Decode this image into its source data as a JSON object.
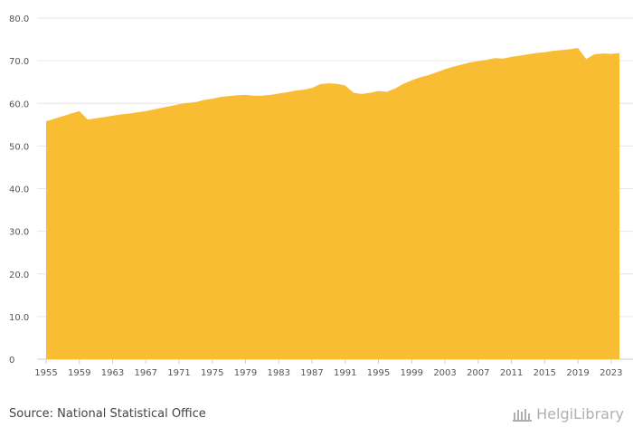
{
  "chart_data": {
    "type": "area",
    "title": "",
    "xlabel": "",
    "ylabel": "",
    "ylim": [
      0,
      80
    ],
    "yticks": [
      "0",
      "10.0",
      "20.0",
      "30.0",
      "40.0",
      "50.0",
      "60.0",
      "70.0",
      "80.0"
    ],
    "ytick_values": [
      0,
      10,
      20,
      30,
      40,
      50,
      60,
      70,
      80
    ],
    "xtick_labels": [
      "1955",
      "1959",
      "1963",
      "1967",
      "1971",
      "1975",
      "1979",
      "1983",
      "1987",
      "1991",
      "1995",
      "1999",
      "2003",
      "2007",
      "2011",
      "2015",
      "2019",
      "2023"
    ],
    "fill_color": "#f9bd33",
    "x": [
      1955,
      1956,
      1957,
      1958,
      1959,
      1960,
      1961,
      1962,
      1963,
      1964,
      1965,
      1966,
      1967,
      1968,
      1969,
      1970,
      1971,
      1972,
      1973,
      1974,
      1975,
      1976,
      1977,
      1978,
      1979,
      1980,
      1981,
      1982,
      1983,
      1984,
      1985,
      1986,
      1987,
      1988,
      1989,
      1990,
      1991,
      1992,
      1993,
      1994,
      1995,
      1996,
      1997,
      1998,
      1999,
      2000,
      2001,
      2002,
      2003,
      2004,
      2005,
      2006,
      2007,
      2008,
      2009,
      2010,
      2011,
      2012,
      2013,
      2014,
      2015,
      2016,
      2017,
      2018,
      2019,
      2020,
      2021,
      2022,
      2023,
      2024
    ],
    "values": [
      55.8,
      56.4,
      57.0,
      57.6,
      58.2,
      56.2,
      56.5,
      56.8,
      57.1,
      57.4,
      57.6,
      57.9,
      58.2,
      58.6,
      59.0,
      59.4,
      59.8,
      60.1,
      60.3,
      60.8,
      61.1,
      61.5,
      61.7,
      61.9,
      62.0,
      61.8,
      61.8,
      62.0,
      62.3,
      62.6,
      63.0,
      63.2,
      63.6,
      64.5,
      64.7,
      64.6,
      64.2,
      62.5,
      62.2,
      62.5,
      62.9,
      62.7,
      63.5,
      64.6,
      65.4,
      66.1,
      66.6,
      67.3,
      68.0,
      68.6,
      69.1,
      69.6,
      69.9,
      70.2,
      70.6,
      70.5,
      70.9,
      71.2,
      71.5,
      71.8,
      72.0,
      72.3,
      72.5,
      72.7,
      73.0,
      70.4,
      71.5,
      71.7,
      71.6,
      71.8
    ]
  },
  "footer": {
    "source": "Source: National Statistical Office",
    "brand": "HelgiLibrary"
  }
}
